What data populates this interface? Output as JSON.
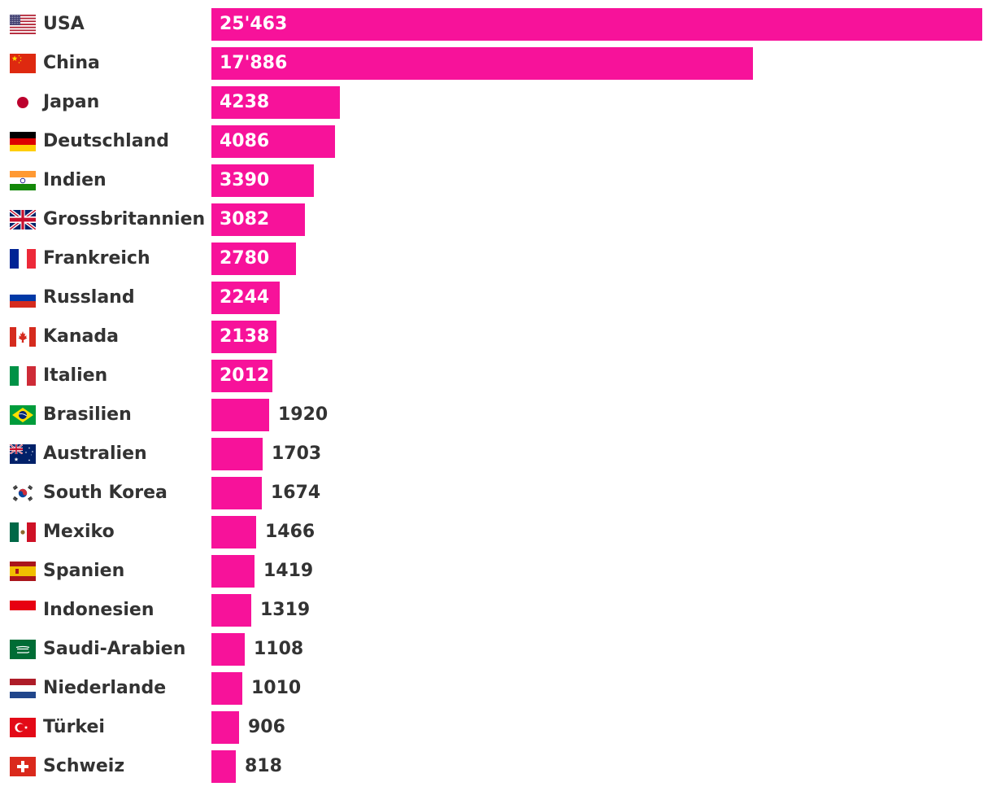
{
  "colors": {
    "bar": "#f7129a",
    "text": "#333333",
    "inside_text": "#ffffff"
  },
  "chart_data": {
    "type": "bar",
    "orientation": "horizontal",
    "title": "",
    "xlabel": "",
    "ylabel": "",
    "grid": false,
    "xlim": [
      0,
      25463
    ],
    "categories": [
      "USA",
      "China",
      "Japan",
      "Deutschland",
      "Indien",
      "Grossbritannien",
      "Frankreich",
      "Russland",
      "Kanada",
      "Italien",
      "Brasilien",
      "Australien",
      "South Korea",
      "Mexiko",
      "Spanien",
      "Indonesien",
      "Saudi-Arabien",
      "Niederlande",
      "Türkei",
      "Schweiz"
    ],
    "values": [
      25463,
      17886,
      4238,
      4086,
      3390,
      3082,
      2780,
      2244,
      2138,
      2012,
      1920,
      1703,
      1674,
      1466,
      1419,
      1319,
      1108,
      1010,
      906,
      818
    ],
    "labels": [
      "25'463",
      "17'886",
      "4238",
      "4086",
      "3390",
      "3082",
      "2780",
      "2244",
      "2138",
      "2012",
      "1920",
      "1703",
      "1674",
      "1466",
      "1419",
      "1319",
      "1108",
      "1010",
      "906",
      "818"
    ],
    "flag_icons": [
      "flag-usa-icon",
      "flag-china-icon",
      "flag-japan-icon",
      "flag-germany-icon",
      "flag-india-icon",
      "flag-uk-icon",
      "flag-france-icon",
      "flag-russia-icon",
      "flag-canada-icon",
      "flag-italy-icon",
      "flag-brazil-icon",
      "flag-australia-icon",
      "flag-south-korea-icon",
      "flag-mexico-icon",
      "flag-spain-icon",
      "flag-indonesia-icon",
      "flag-saudi-arabia-icon",
      "flag-netherlands-icon",
      "flag-turkey-icon",
      "flag-switzerland-icon"
    ]
  }
}
